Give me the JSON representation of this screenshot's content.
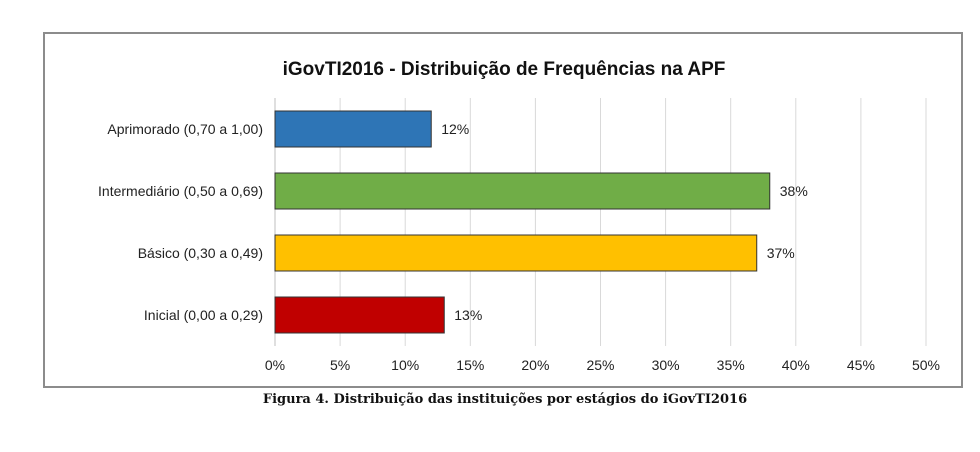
{
  "chart_data": {
    "type": "bar",
    "orientation": "horizontal",
    "title": "iGovTI2016 - Distribuição de Frequências na APF",
    "categories": [
      "Aprimorado (0,70 a 1,00)",
      "Intermediário (0,50 a 0,69)",
      "Básico (0,30 a 0,49)",
      "Inicial (0,00 a 0,29)"
    ],
    "values": [
      12,
      38,
      37,
      13
    ],
    "data_labels": [
      "12%",
      "38%",
      "37%",
      "13%"
    ],
    "colors": [
      "#2e75b6",
      "#70ad47",
      "#ffc000",
      "#c00000"
    ],
    "xlim": [
      0,
      50
    ],
    "x_ticks": [
      "0%",
      "5%",
      "10%",
      "15%",
      "20%",
      "25%",
      "30%",
      "35%",
      "40%",
      "45%",
      "50%"
    ],
    "grid": true
  },
  "caption": "Figura 4. Distribuição das instituições por estágios do iGovTI2016"
}
